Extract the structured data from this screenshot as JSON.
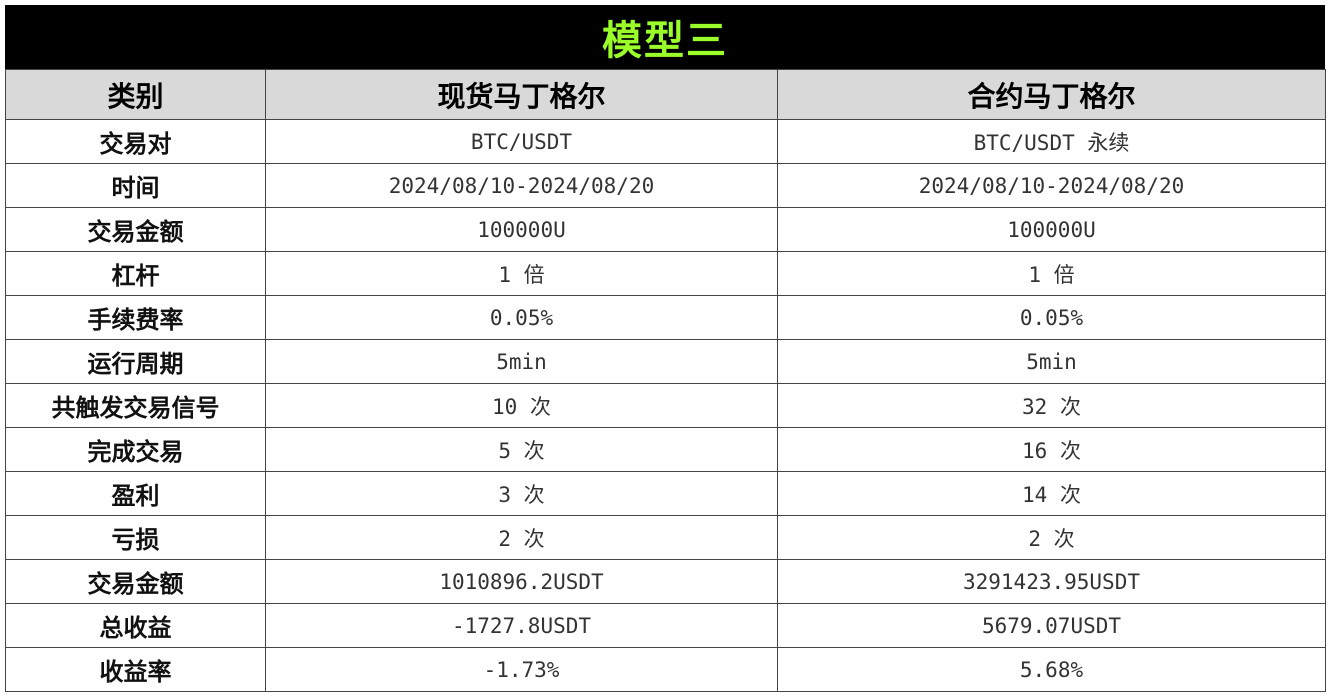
{
  "title": "模型三",
  "colors": {
    "title_bg": "#000000",
    "title_text": "#9bff2a",
    "header_bg": "#d9d9d9"
  },
  "header": {
    "category": "类别",
    "spot": "现货马丁格尔",
    "contract": "合约马丁格尔"
  },
  "rows": [
    {
      "label": "交易对",
      "spot": "BTC/USDT",
      "contract": "BTC/USDT 永续"
    },
    {
      "label": "时间",
      "spot": "2024/08/10-2024/08/20",
      "contract": "2024/08/10-2024/08/20"
    },
    {
      "label": "交易金额",
      "spot": "100000U",
      "contract": "100000U"
    },
    {
      "label": "杠杆",
      "spot": "1 倍",
      "contract": "1 倍"
    },
    {
      "label": "手续费率",
      "spot": "0.05%",
      "contract": "0.05%"
    },
    {
      "label": "运行周期",
      "spot": "5min",
      "contract": "5min"
    },
    {
      "label": "共触发交易信号",
      "spot": "10 次",
      "contract": "32 次"
    },
    {
      "label": "完成交易",
      "spot": "5 次",
      "contract": "16 次"
    },
    {
      "label": "盈利",
      "spot": "3 次",
      "contract": "14 次"
    },
    {
      "label": "亏损",
      "spot": "2 次",
      "contract": "2 次"
    },
    {
      "label": "交易金额",
      "spot": "1010896.2USDT",
      "contract": "3291423.95USDT"
    },
    {
      "label": "总收益",
      "spot": "-1727.8USDT",
      "contract": "5679.07USDT"
    },
    {
      "label": "收益率",
      "spot": "-1.73%",
      "contract": "5.68%"
    }
  ]
}
